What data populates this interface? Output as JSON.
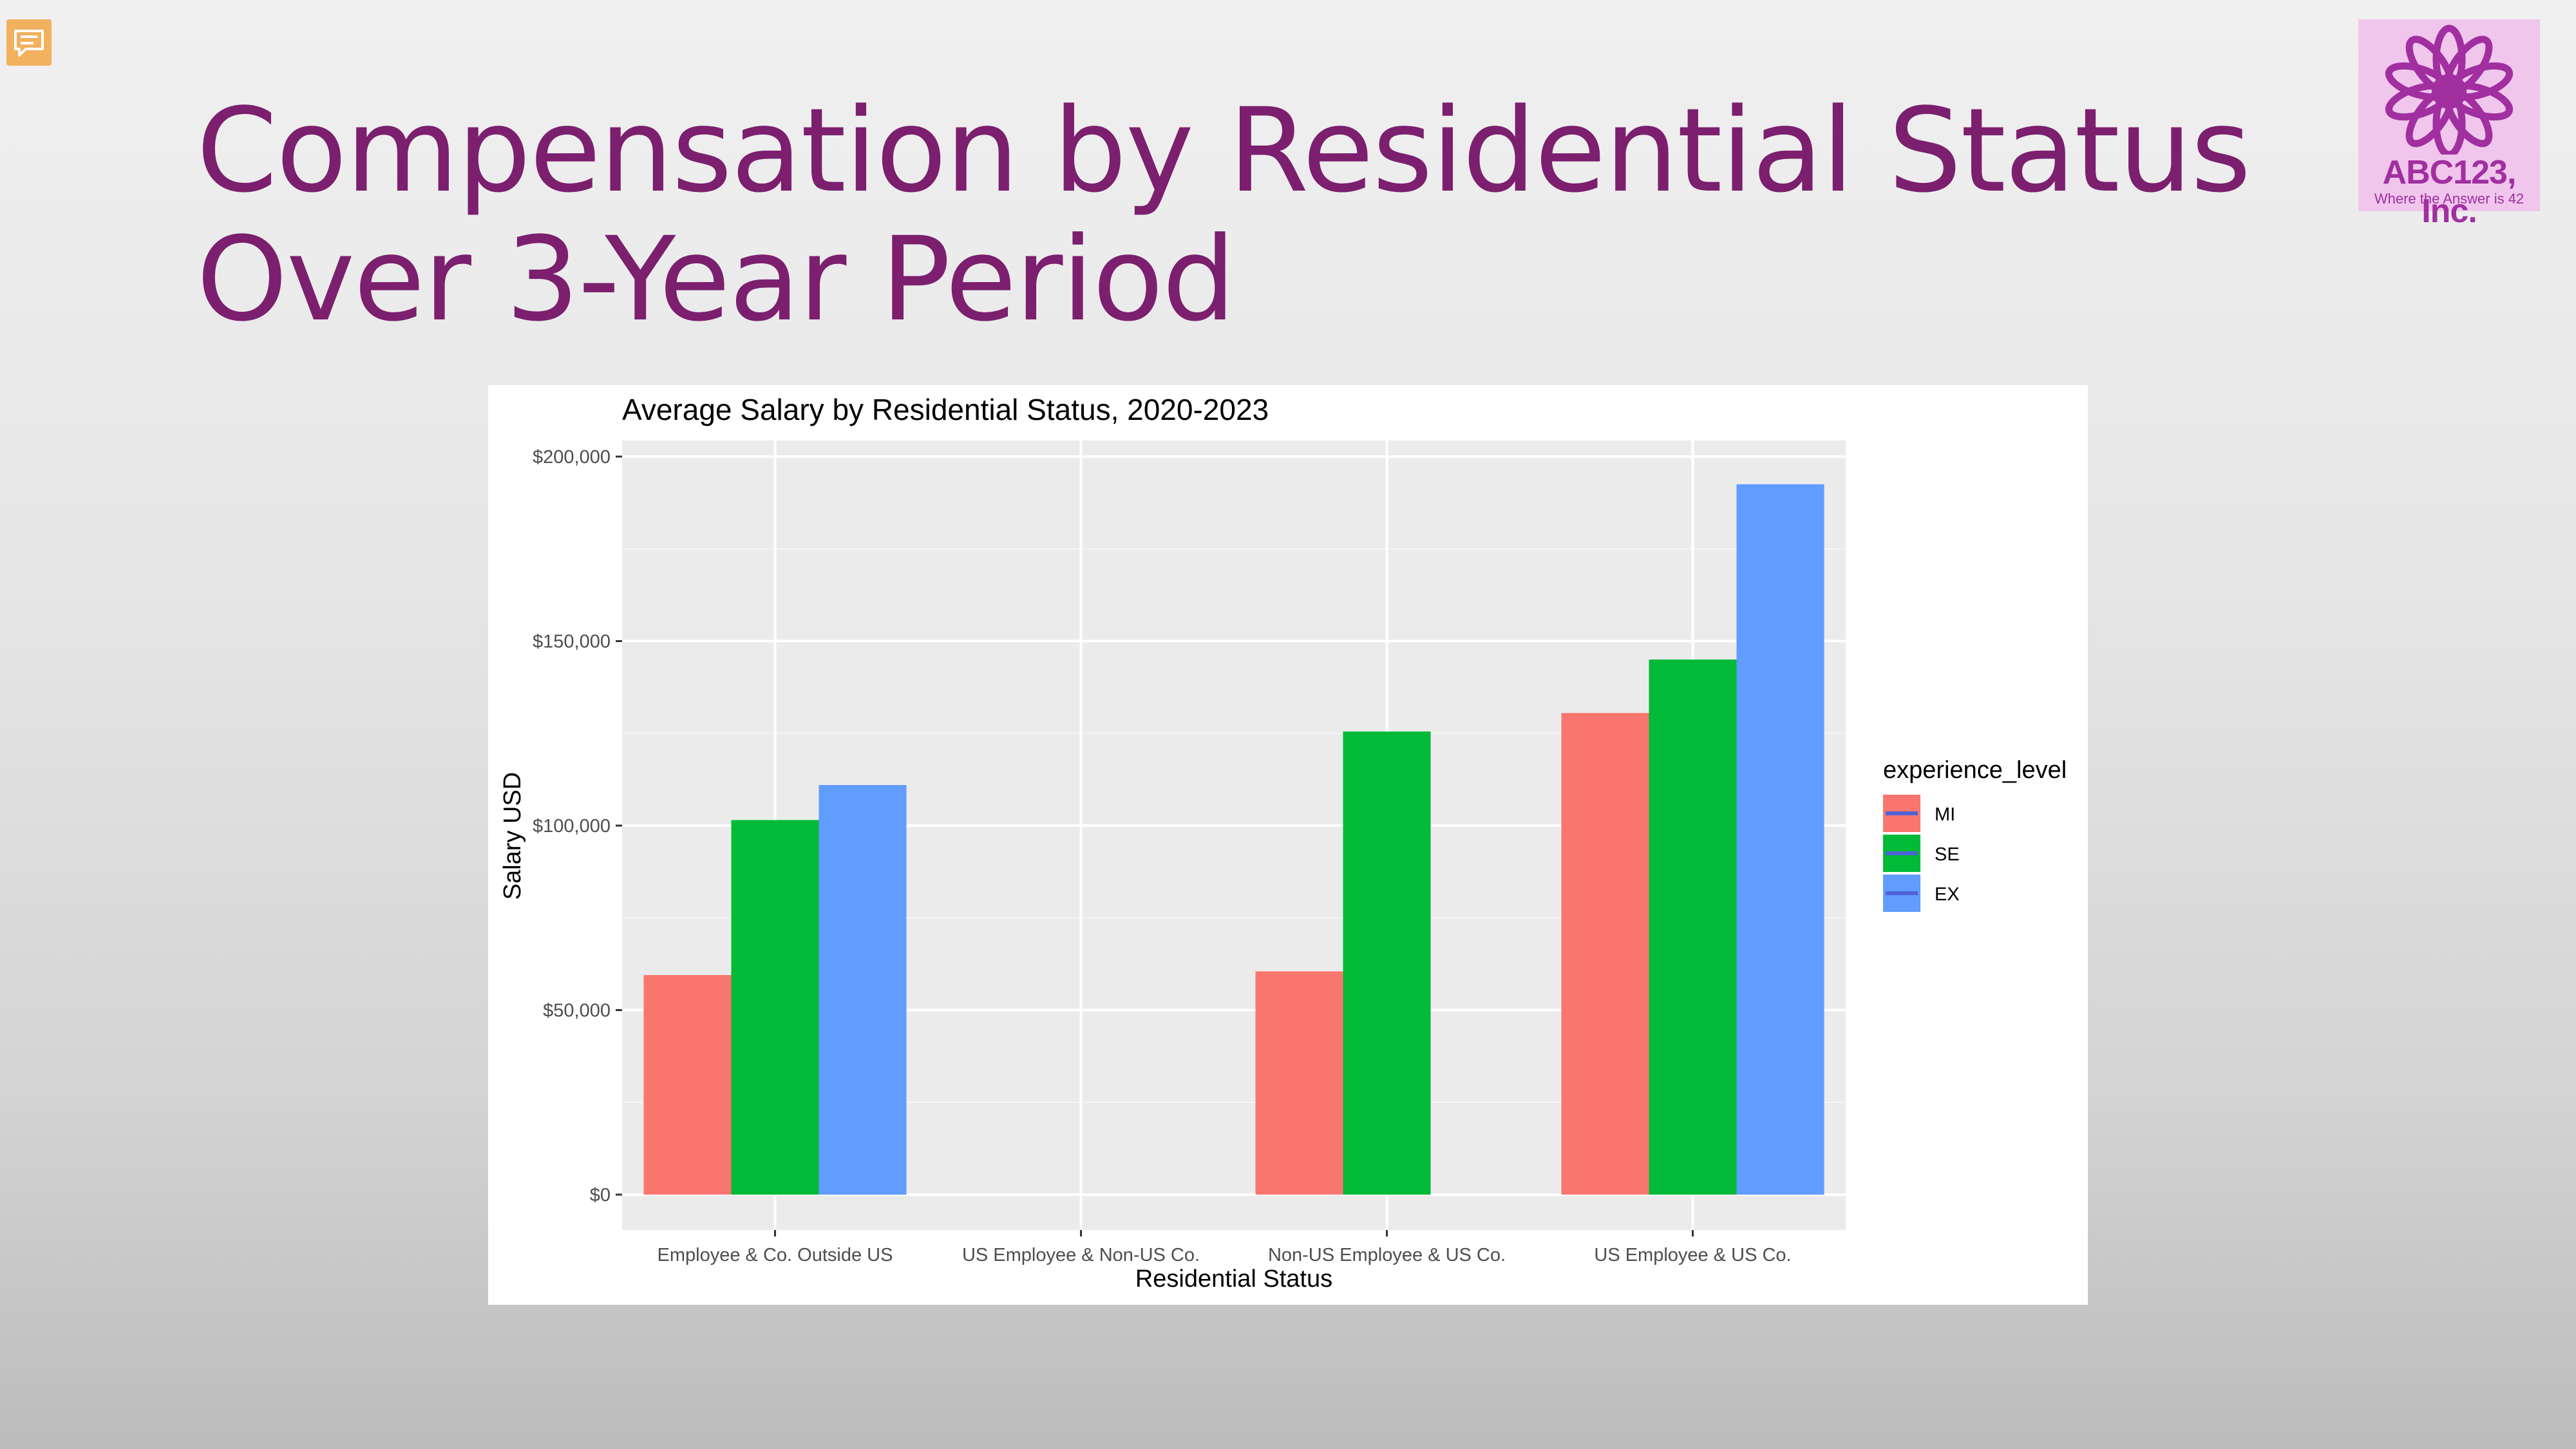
{
  "slide": {
    "title_line1": "Compensation by Residential Status",
    "title_line2": "Over 3-Year Period"
  },
  "toolbar": {
    "comment_icon": "speech-bubble-icon"
  },
  "logo": {
    "name": "ABC123, Inc.",
    "tagline": "Where the Answer is 42",
    "icon": "flower-icon",
    "color": "#a12fa0",
    "background": "#f0c6ec"
  },
  "colors": {
    "title": "#7b1f6e",
    "MI": "#f8766d",
    "SE": "#00ba38",
    "EX": "#619cff"
  },
  "chart_data": {
    "type": "bar",
    "title": "Average Salary by Residential Status, 2020-2023",
    "xlabel": "Residential Status",
    "ylabel": "Salary USD",
    "categories": [
      "Employee & Co. Outside US",
      "US Employee & Non-US Co.",
      "Non-US Employee & US Co.",
      "US Employee & US Co."
    ],
    "ylim": [
      0,
      210000
    ],
    "yticks": [
      0,
      50000,
      100000,
      150000,
      200000
    ],
    "ytick_labels": [
      "$0",
      "$50,000",
      "$100,000",
      "$150,000",
      "$200,000"
    ],
    "grid": true,
    "legend": {
      "title": "experience_level",
      "placement": "right"
    },
    "series": [
      {
        "name": "MI",
        "color": "#f8766d",
        "values": [
          59500,
          null,
          60500,
          130500
        ]
      },
      {
        "name": "SE",
        "color": "#00ba38",
        "values": [
          101500,
          null,
          125500,
          145000
        ]
      },
      {
        "name": "EX",
        "color": "#619cff",
        "values": [
          111000,
          null,
          null,
          192500
        ]
      }
    ]
  }
}
